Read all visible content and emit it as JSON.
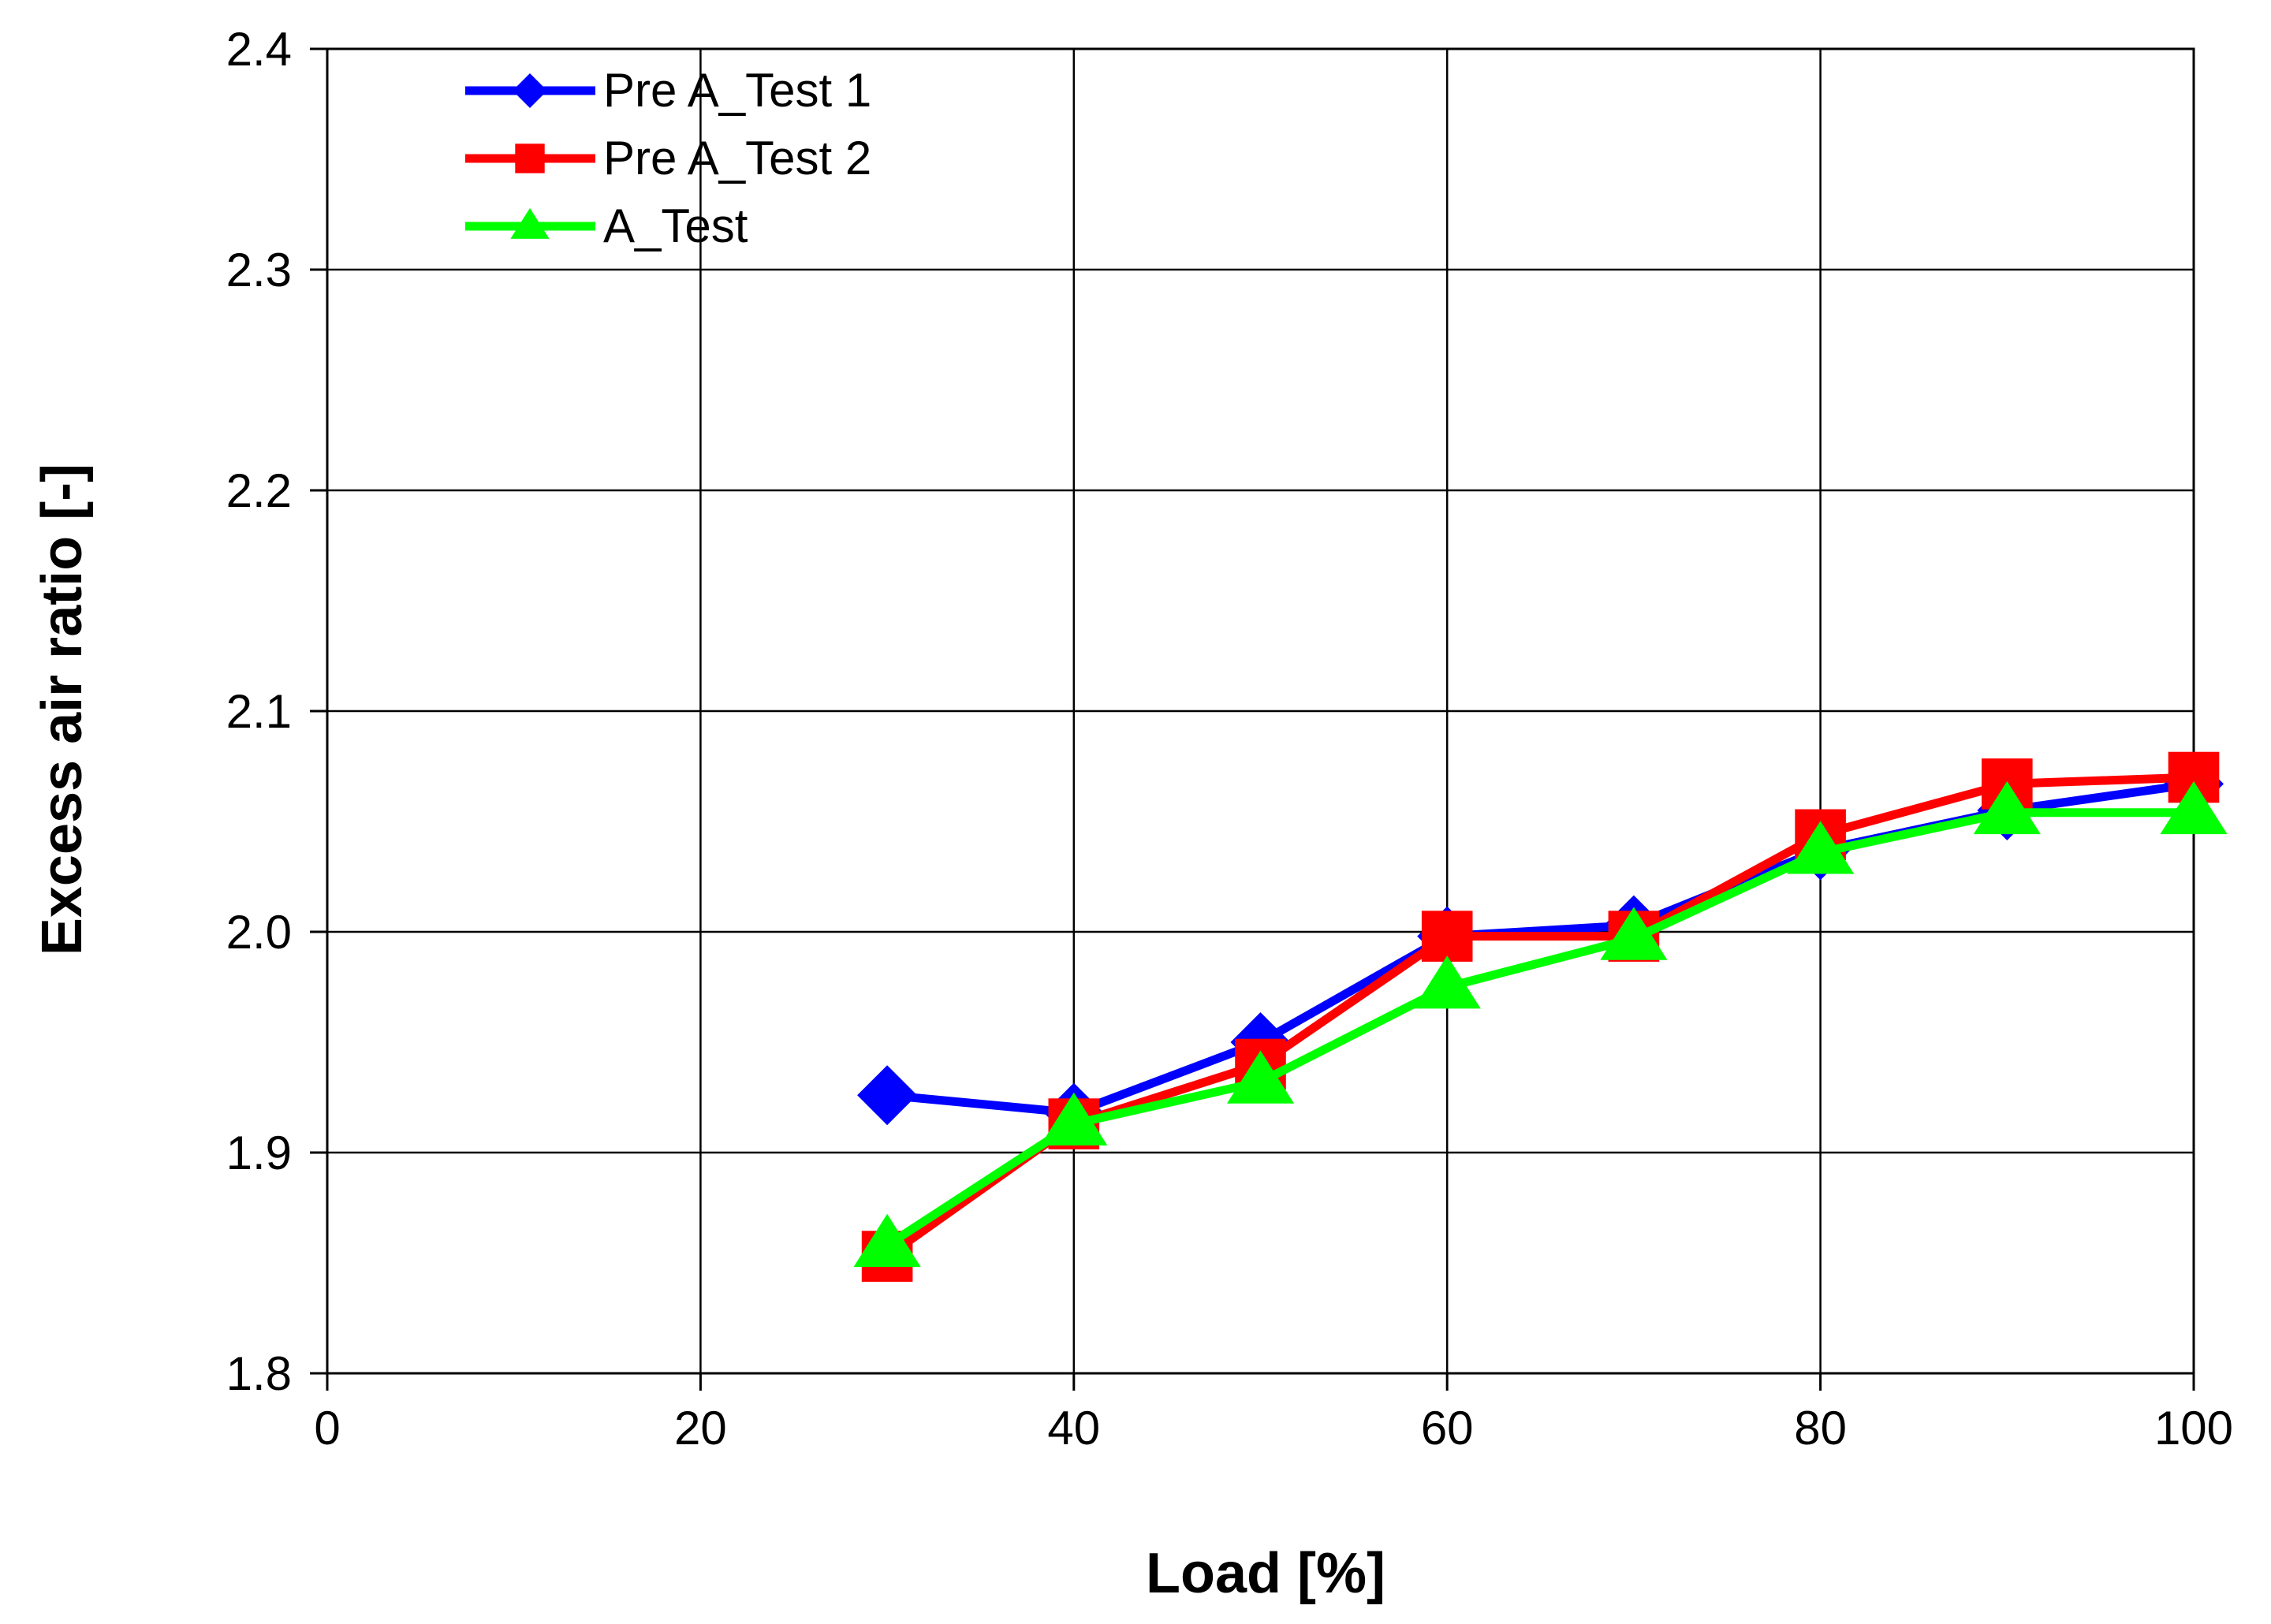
{
  "chart_data": {
    "type": "line",
    "title": "",
    "xlabel": "Load [%]",
    "ylabel": "Excess air ratio [-]",
    "xlim": [
      0,
      100
    ],
    "ylim": [
      1.8,
      2.4
    ],
    "xticks": [
      0,
      20,
      40,
      60,
      80,
      100
    ],
    "xtick_labels": [
      "0",
      "20",
      "40",
      "60",
      "80",
      "100"
    ],
    "yticks": [
      1.8,
      1.9,
      2.0,
      2.1,
      2.2,
      2.3,
      2.4
    ],
    "ytick_labels": [
      "1.8",
      "1.9",
      "2.0",
      "2.1",
      "2.2",
      "2.3",
      "2.4"
    ],
    "grid": true,
    "legend_position": "top-left",
    "series": [
      {
        "name": "Pre A_Test 1",
        "color": "#0000ff",
        "marker": "diamond",
        "x": [
          30,
          40,
          50,
          60,
          70,
          80,
          90,
          100
        ],
        "y": [
          1.926,
          1.918,
          1.95,
          1.998,
          2.003,
          2.037,
          2.055,
          2.067
        ]
      },
      {
        "name": "Pre A_Test 2",
        "color": "#ff0000",
        "marker": "square",
        "x": [
          30,
          40,
          50,
          60,
          70,
          80,
          90,
          100
        ],
        "y": [
          1.853,
          1.913,
          1.94,
          1.998,
          1.998,
          2.044,
          2.067,
          2.07
        ]
      },
      {
        "name": "A_Test",
        "color": "#00ff00",
        "marker": "triangle",
        "x": [
          30,
          40,
          50,
          60,
          70,
          80,
          90,
          100
        ],
        "y": [
          1.858,
          1.913,
          1.932,
          1.975,
          1.997,
          2.036,
          2.054,
          2.054
        ]
      }
    ]
  }
}
